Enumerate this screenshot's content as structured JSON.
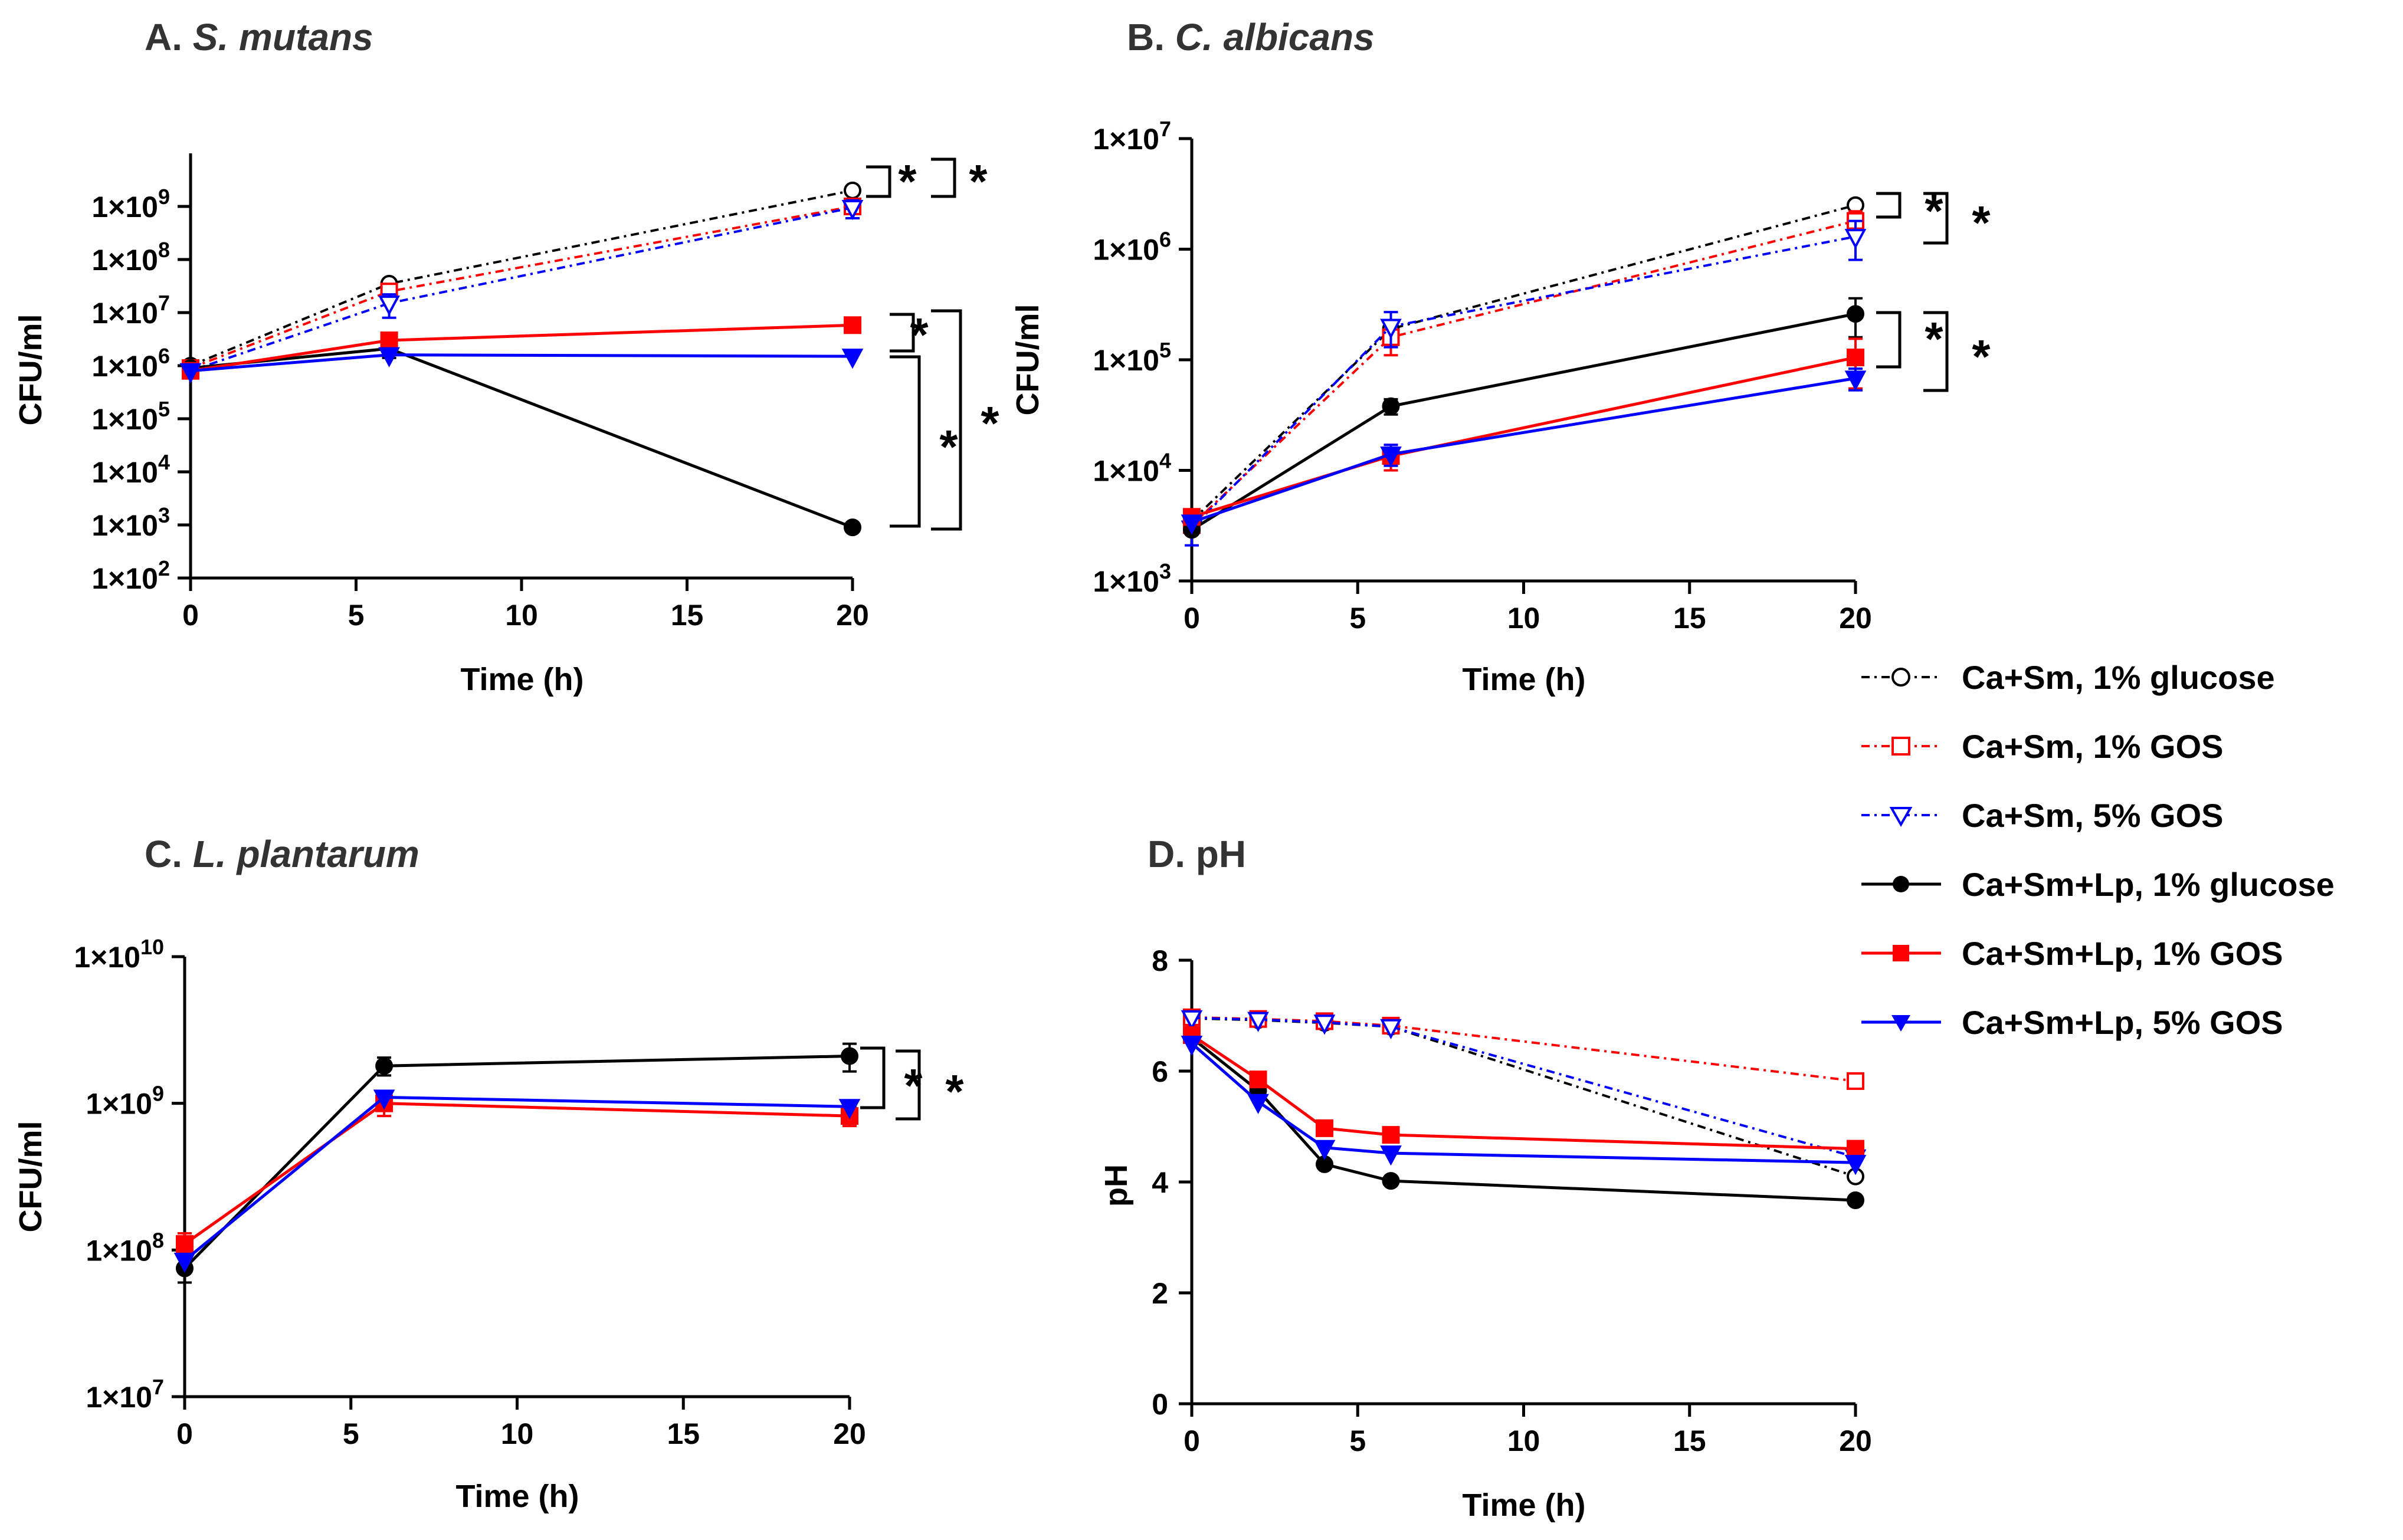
{
  "chart_data": [
    {
      "id": "A",
      "type": "line",
      "title_prefix": "A.",
      "title_species": "S. mutans",
      "xlabel": "Time (h)",
      "ylabel": "CFU/ml",
      "yscale": "log",
      "xlim": [
        0,
        20
      ],
      "ylim": [
        100,
        10000000000
      ],
      "xticks": [
        0,
        5,
        10,
        15,
        20
      ],
      "xtick_labels": [
        "0",
        "5",
        "10",
        "15",
        "20"
      ],
      "ytick_exps": [
        2,
        3,
        4,
        5,
        6,
        7,
        8,
        9
      ],
      "ytick_mantissa": "1×10",
      "series": [
        {
          "name": "Ca+Sm, 1% glucose",
          "x": [
            0,
            6,
            20
          ],
          "y": [
            1000000,
            35000000,
            2000000000
          ],
          "err": [
            0,
            0,
            0
          ]
        },
        {
          "name": "Ca+Sm, 1% GOS",
          "x": [
            0,
            6,
            20
          ],
          "y": [
            900000,
            25000000,
            1000000000
          ],
          "err": [
            0,
            0,
            0
          ]
        },
        {
          "name": "Ca+Sm, 5% GOS",
          "x": [
            0,
            6,
            20
          ],
          "y": [
            800000,
            15000000,
            950000000
          ],
          "err": [
            0,
            7000000,
            350000000
          ]
        },
        {
          "name": "Ca+Sm+Lp, 1% glucose",
          "x": [
            0,
            6,
            20
          ],
          "y": [
            900000,
            2100000,
            900
          ],
          "err": [
            0,
            700000,
            150
          ]
        },
        {
          "name": "Ca+Sm+Lp, 1% GOS",
          "x": [
            0,
            6,
            20
          ],
          "y": [
            800000,
            3000000,
            5800000
          ],
          "err": [
            0,
            0,
            0
          ]
        },
        {
          "name": "Ca+Sm+Lp, 5% GOS",
          "x": [
            0,
            6,
            20
          ],
          "y": [
            800000,
            1600000,
            1500000
          ],
          "err": [
            0,
            0,
            0
          ]
        }
      ],
      "significance": [
        "*",
        "*",
        "*",
        "*",
        "*"
      ]
    },
    {
      "id": "B",
      "type": "line",
      "title_prefix": "B.",
      "title_species": "C. albicans",
      "xlabel": "Time (h)",
      "ylabel": "CFU/ml",
      "yscale": "log",
      "xlim": [
        0,
        20
      ],
      "ylim": [
        1000,
        10000000
      ],
      "xticks": [
        0,
        5,
        10,
        15,
        20
      ],
      "xtick_labels": [
        "0",
        "5",
        "10",
        "15",
        "20"
      ],
      "ytick_exps": [
        3,
        4,
        5,
        6,
        7
      ],
      "ytick_mantissa": "1×10",
      "series": [
        {
          "name": "Ca+Sm, 1% glucose",
          "x": [
            0,
            6,
            20
          ],
          "y": [
            3500,
            190000,
            2500000
          ],
          "err": [
            0,
            0,
            0
          ]
        },
        {
          "name": "Ca+Sm, 1% GOS",
          "x": [
            0,
            6,
            20
          ],
          "y": [
            3200,
            160000,
            1800000
          ],
          "err": [
            0,
            50000,
            400000
          ]
        },
        {
          "name": "Ca+Sm, 5% GOS",
          "x": [
            0,
            6,
            20
          ],
          "y": [
            3000,
            200000,
            1300000
          ],
          "err": [
            900,
            70000,
            500000
          ]
        },
        {
          "name": "Ca+Sm+Lp, 1% glucose",
          "x": [
            0,
            6,
            20
          ],
          "y": [
            2900,
            38000,
            260000
          ],
          "err": [
            0,
            6000,
            100000
          ]
        },
        {
          "name": "Ca+Sm+Lp, 1% GOS",
          "x": [
            0,
            6,
            20
          ],
          "y": [
            3800,
            13500,
            105000
          ],
          "err": [
            0,
            3500,
            50000
          ]
        },
        {
          "name": "Ca+Sm+Lp, 5% GOS",
          "x": [
            0,
            6,
            20
          ],
          "y": [
            3400,
            14000,
            68000
          ],
          "err": [
            0,
            3000,
            15000
          ]
        }
      ],
      "significance": [
        "*",
        "*",
        "*",
        "*"
      ]
    },
    {
      "id": "C",
      "type": "line",
      "title_prefix": "C.",
      "title_species": "L. plantarum",
      "xlabel": "Time (h)",
      "ylabel": "CFU/ml",
      "yscale": "log",
      "xlim": [
        0,
        20
      ],
      "ylim": [
        10000000,
        10000000000
      ],
      "xticks": [
        0,
        5,
        10,
        15,
        20
      ],
      "xtick_labels": [
        "0",
        "5",
        "10",
        "15",
        "20"
      ],
      "ytick_exps": [
        7,
        8,
        9,
        10
      ],
      "ytick_mantissa": "1×10",
      "series": [
        {
          "name": "Ca+Sm+Lp, 1% glucose",
          "x": [
            0,
            6,
            20
          ],
          "y": [
            75000000,
            1800000000,
            2100000000
          ],
          "err": [
            15000000,
            250000000,
            450000000
          ]
        },
        {
          "name": "Ca+Sm+Lp, 1% GOS",
          "x": [
            0,
            6,
            20
          ],
          "y": [
            110000000,
            1000000000,
            820000000
          ],
          "err": [
            20000000,
            180000000,
            120000000
          ]
        },
        {
          "name": "Ca+Sm+Lp, 5% GOS",
          "x": [
            0,
            6,
            20
          ],
          "y": [
            85000000,
            1100000000,
            950000000
          ],
          "err": [
            0,
            0,
            0
          ]
        }
      ],
      "significance": [
        "*",
        "*"
      ]
    },
    {
      "id": "D",
      "type": "line",
      "title_prefix": "D.",
      "title_species": "pH",
      "xlabel": "Time (h)",
      "ylabel": "pH",
      "yscale": "linear",
      "xlim": [
        0,
        20
      ],
      "ylim": [
        0,
        8
      ],
      "xticks": [
        0,
        5,
        10,
        15,
        20
      ],
      "xtick_labels": [
        "0",
        "5",
        "10",
        "15",
        "20"
      ],
      "yticks": [
        0,
        2,
        4,
        6,
        8
      ],
      "ytick_labels": [
        "0",
        "2",
        "4",
        "6",
        "8"
      ],
      "series": [
        {
          "name": "Ca+Sm, 1% glucose",
          "x": [
            0,
            2,
            4,
            6,
            20
          ],
          "y": [
            6.95,
            6.92,
            6.87,
            6.8,
            4.1
          ],
          "err": [
            0,
            0,
            0,
            0,
            0
          ]
        },
        {
          "name": "Ca+Sm, 1% GOS",
          "x": [
            0,
            2,
            4,
            6,
            20
          ],
          "y": [
            6.97,
            6.94,
            6.9,
            6.82,
            5.82
          ],
          "err": [
            0,
            0,
            0,
            0,
            0
          ]
        },
        {
          "name": "Ca+Sm, 5% GOS",
          "x": [
            0,
            2,
            4,
            6,
            20
          ],
          "y": [
            6.96,
            6.93,
            6.88,
            6.8,
            4.45
          ],
          "err": [
            0,
            0,
            0,
            0,
            0
          ]
        },
        {
          "name": "Ca+Sm+Lp, 1% glucose",
          "x": [
            0,
            2,
            4,
            6,
            20
          ],
          "y": [
            6.6,
            5.65,
            4.32,
            4.02,
            3.67
          ],
          "err": [
            0,
            0,
            0,
            0,
            0
          ]
        },
        {
          "name": "Ca+Sm+Lp, 1% GOS",
          "x": [
            0,
            2,
            4,
            6,
            20
          ],
          "y": [
            6.65,
            5.85,
            4.97,
            4.85,
            4.6
          ],
          "err": [
            0,
            0,
            0,
            0,
            0
          ]
        },
        {
          "name": "Ca+Sm+Lp, 5% GOS",
          "x": [
            0,
            2,
            4,
            6,
            20
          ],
          "y": [
            6.5,
            5.45,
            4.62,
            4.52,
            4.35
          ],
          "err": [
            0,
            0,
            0,
            0,
            0
          ]
        }
      ],
      "significance": []
    }
  ],
  "legend": {
    "placement": "right, between top and bottom panel rows",
    "entries": [
      {
        "label": "Ca+Sm, 1% glucose"
      },
      {
        "label": "Ca+Sm, 1% GOS"
      },
      {
        "label": "Ca+Sm, 5% GOS"
      },
      {
        "label": "Ca+Sm+Lp, 1% glucose"
      },
      {
        "label": "Ca+Sm+Lp, 1% GOS"
      },
      {
        "label": "Ca+Sm+Lp, 5% GOS"
      }
    ]
  },
  "series_styles": {
    "Ca+Sm, 1% glucose": {
      "color": "#000000",
      "marker": "circle",
      "filled": false,
      "dash": "dashdot"
    },
    "Ca+Sm, 1% GOS": {
      "color": "#ff0000",
      "marker": "square",
      "filled": false,
      "dash": "dashdot"
    },
    "Ca+Sm, 5% GOS": {
      "color": "#0000ff",
      "marker": "triangle-down",
      "filled": false,
      "dash": "dashdot"
    },
    "Ca+Sm+Lp, 1% glucose": {
      "color": "#000000",
      "marker": "circle",
      "filled": true,
      "dash": "solid"
    },
    "Ca+Sm+Lp, 1% GOS": {
      "color": "#ff0000",
      "marker": "square",
      "filled": true,
      "dash": "solid"
    },
    "Ca+Sm+Lp, 5% GOS": {
      "color": "#0000ff",
      "marker": "triangle-down",
      "filled": true,
      "dash": "solid"
    }
  },
  "colors": {
    "axis": "#000000",
    "title": "#333333",
    "background": "#ffffff"
  }
}
